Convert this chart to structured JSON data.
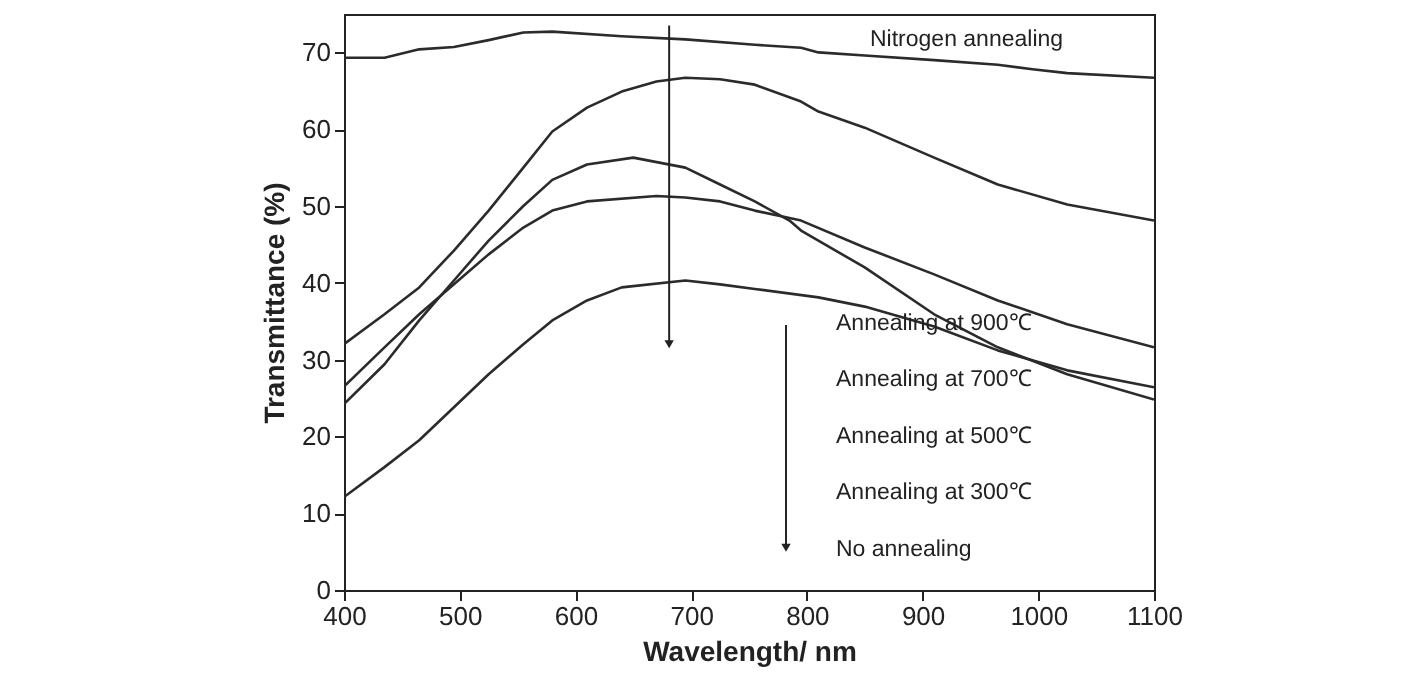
{
  "chart_data": {
    "type": "line",
    "xlabel": "Wavelength/ nm",
    "ylabel": "Transmittance (%)",
    "xlim": [
      400,
      1100
    ],
    "ylim": [
      0,
      75
    ],
    "xticks": [
      400,
      500,
      600,
      700,
      800,
      900,
      1000,
      1100
    ],
    "yticks": [
      0,
      10,
      20,
      30,
      40,
      50,
      60,
      70
    ],
    "grid": false,
    "marker": "none",
    "line_style": "solid",
    "series": [
      {
        "color": "#2b2b2b",
        "x": [
          400,
          435,
          465,
          495,
          525,
          555,
          580,
          640,
          695,
          755,
          795,
          810,
          850,
          910,
          965,
          995,
          1025,
          1100
        ],
        "values": [
          69.3,
          69.3,
          70.4,
          70.7,
          71.6,
          72.6,
          72.7,
          72.1,
          71.7,
          71.0,
          70.6,
          70.0,
          69.6,
          69.0,
          68.4,
          67.8,
          67.3,
          66.7
        ]
      },
      {
        "color": "#2b2b2b",
        "x": [
          400,
          435,
          465,
          495,
          525,
          555,
          580,
          610,
          640,
          670,
          695,
          725,
          755,
          795,
          810,
          850,
          910,
          965,
          1025,
          1100
        ],
        "values": [
          32.0,
          35.9,
          39.4,
          44.2,
          49.4,
          55.0,
          59.7,
          62.8,
          64.9,
          66.2,
          66.7,
          66.5,
          65.8,
          63.6,
          62.3,
          60.2,
          56.3,
          52.8,
          50.2,
          48.1
        ]
      },
      {
        "color": "#2b2b2b",
        "x": [
          400,
          435,
          465,
          495,
          525,
          555,
          580,
          610,
          650,
          695,
          725,
          755,
          785,
          795,
          850,
          910,
          965,
          1025,
          1100
        ],
        "values": [
          24.2,
          29.4,
          35.1,
          40.3,
          45.5,
          50.0,
          53.4,
          55.4,
          56.3,
          55.0,
          52.8,
          50.6,
          48.1,
          46.8,
          42.0,
          35.9,
          31.6,
          28.1,
          24.8
        ]
      },
      {
        "color": "#2b2b2b",
        "x": [
          400,
          435,
          465,
          495,
          525,
          555,
          580,
          610,
          670,
          695,
          725,
          755,
          795,
          850,
          910,
          965,
          1025,
          1100
        ],
        "values": [
          26.5,
          31.6,
          35.9,
          39.8,
          43.7,
          47.2,
          49.4,
          50.6,
          51.3,
          51.1,
          50.6,
          49.4,
          48.1,
          44.6,
          41.1,
          37.7,
          34.6,
          31.6
        ]
      },
      {
        "color": "#2b2b2b",
        "x": [
          400,
          435,
          465,
          495,
          525,
          555,
          580,
          610,
          640,
          695,
          725,
          755,
          810,
          850,
          910,
          965,
          1025,
          1100
        ],
        "values": [
          12.1,
          16.0,
          19.5,
          23.8,
          28.1,
          32.0,
          35.1,
          37.7,
          39.4,
          40.3,
          39.8,
          39.2,
          38.1,
          36.9,
          34.3,
          31.2,
          28.6,
          26.4
        ]
      }
    ],
    "annotations": [
      "Nitrogen annealing",
      "Annealing at 900℃",
      "Annealing at 700℃",
      "Annealing at 500℃",
      "Annealing at 300℃",
      "No annealing"
    ]
  }
}
